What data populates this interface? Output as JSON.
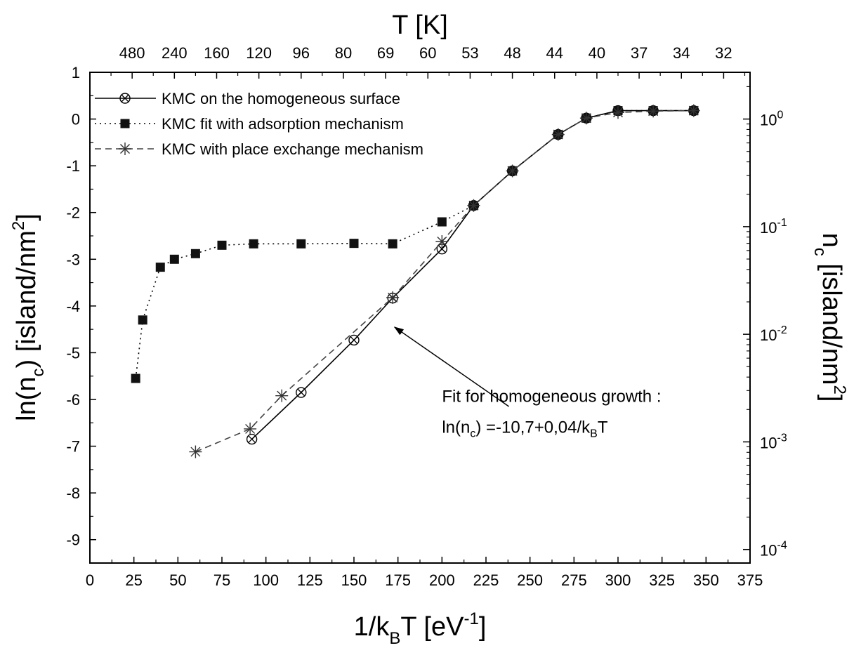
{
  "chart_data": {
    "type": "scatter",
    "top_axis": {
      "label": "T [K]",
      "tick_labels": [
        "480",
        "240",
        "160",
        "120",
        "96",
        "80",
        "69",
        "60",
        "53",
        "48",
        "44",
        "40",
        "37",
        "34",
        "32"
      ],
      "tick_positions_x": [
        24,
        48,
        72,
        96,
        120,
        144,
        168,
        192,
        216,
        240,
        264,
        288,
        312,
        336,
        360
      ]
    },
    "x_axis": {
      "label_main": "1/k",
      "label_sub": "B",
      "label_mid": "T [eV",
      "label_sup": "-1",
      "label_end": "]",
      "range": [
        0,
        375
      ],
      "ticks": [
        0,
        25,
        50,
        75,
        100,
        125,
        150,
        175,
        200,
        225,
        250,
        275,
        300,
        325,
        350,
        375
      ]
    },
    "y_axis": {
      "label_a": "ln(n",
      "label_sub": "c",
      "label_b": ") [island/nm",
      "label_sup": "2",
      "label_end": "]",
      "range": [
        -9.5,
        1
      ],
      "ticks": [
        1,
        0,
        -1,
        -2,
        -3,
        -4,
        -5,
        -6,
        -7,
        -8,
        -9
      ]
    },
    "y2_axis": {
      "label_a": "n",
      "label_sub": "c",
      "label_b": " [island/nm",
      "label_sup": "2",
      "label_end": "]",
      "scale": "log",
      "ticks": [
        {
          "base": "10",
          "exp": "0",
          "value": 1
        },
        {
          "base": "10",
          "exp": "-1",
          "value": 0.1
        },
        {
          "base": "10",
          "exp": "-2",
          "value": 0.01
        },
        {
          "base": "10",
          "exp": "-3",
          "value": 0.001
        },
        {
          "base": "10",
          "exp": "-4",
          "value": 0.0001
        }
      ]
    },
    "series": [
      {
        "name": "KMC on the homogeneous surface",
        "marker": "circle-x",
        "line": "solid",
        "x": [
          92,
          120,
          150,
          172,
          200,
          218,
          240,
          266,
          282,
          300,
          320,
          343
        ],
        "y": [
          -6.85,
          -5.85,
          -4.73,
          -3.83,
          -2.78,
          -1.85,
          -1.11,
          -0.33,
          0.02,
          0.18,
          0.18,
          0.18
        ]
      },
      {
        "name": "KMC fit with adsorption mechanism",
        "marker": "square",
        "line": "dotted",
        "x": [
          26,
          30,
          40,
          48,
          60,
          75,
          93,
          120,
          150,
          172,
          200,
          218,
          240,
          266,
          282,
          300,
          320,
          343
        ],
        "y": [
          -5.55,
          -4.3,
          -3.17,
          -3.0,
          -2.88,
          -2.7,
          -2.67,
          -2.67,
          -2.66,
          -2.67,
          -2.2,
          -1.85,
          -1.11,
          -0.33,
          0.02,
          0.18,
          0.18,
          0.18
        ]
      },
      {
        "name": "KMC with place exchange mechanism",
        "marker": "asterisk",
        "line": "dashed",
        "x": [
          60,
          91,
          109,
          172,
          200,
          218,
          240,
          266,
          282,
          300,
          320,
          343
        ],
        "y": [
          -7.12,
          -6.63,
          -5.92,
          -3.82,
          -2.62,
          -1.85,
          -1.11,
          -0.33,
          0.02,
          0.14,
          0.17,
          0.18
        ]
      }
    ],
    "annotation": {
      "line1": "Fit for homogeneous growth :",
      "line2_a": "ln(n",
      "line2_sub": "c",
      "line2_b": ") =-10,7+0,04/k",
      "line2_sub2": "B",
      "line2_c": "T",
      "arrow_tail": [
        238,
        -6.15
      ],
      "arrow_head": [
        173,
        -4.45
      ],
      "text_anchor": [
        200,
        -6.05
      ]
    },
    "legend": {
      "position": "top-left"
    },
    "grid": false
  }
}
